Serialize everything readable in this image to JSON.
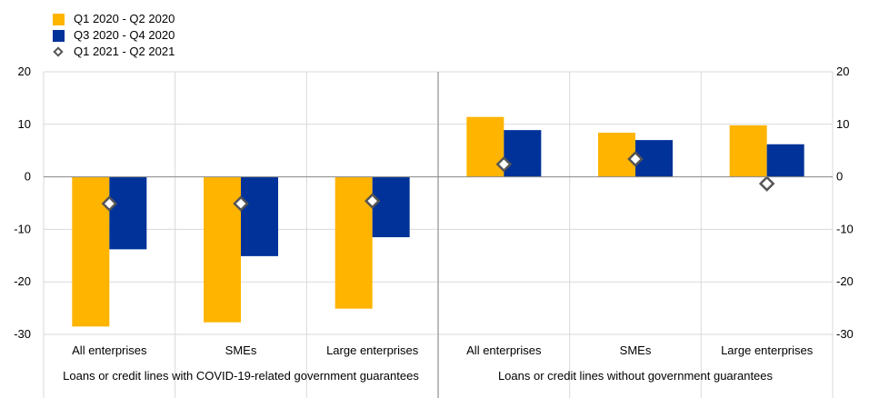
{
  "chart_data": {
    "type": "bar",
    "title": "",
    "xlabel": "",
    "ylabel": "",
    "ylim": [
      -30,
      20
    ],
    "yticks": [
      20,
      10,
      0,
      -10,
      -20,
      -30
    ],
    "grid": true,
    "legend_position": "top-left",
    "categories": [
      "All enterprises",
      "SMEs",
      "Large enterprises",
      "All enterprises",
      "SMEs",
      "Large enterprises"
    ],
    "groups": [
      {
        "label": "Loans or credit lines with COVID-19-related government guarantees",
        "span": [
          0,
          2
        ]
      },
      {
        "label": "Loans or credit lines without government guarantees",
        "span": [
          3,
          5
        ]
      }
    ],
    "series": [
      {
        "name": "Q1 2020 - Q2 2020",
        "kind": "bar",
        "color": "#FFB400",
        "values": [
          -28.5,
          -27.7,
          -25.1,
          11.4,
          8.4,
          9.8
        ]
      },
      {
        "name": "Q3 2020 - Q4 2020",
        "kind": "bar",
        "color": "#003299",
        "values": [
          -13.8,
          -15.1,
          -11.5,
          8.9,
          7.0,
          6.2
        ]
      },
      {
        "name": "Q1 2021 - Q2 2021",
        "kind": "marker",
        "color": "#555555",
        "values": [
          -5.1,
          -5.1,
          -4.6,
          2.4,
          3.4,
          -1.3
        ]
      }
    ]
  }
}
